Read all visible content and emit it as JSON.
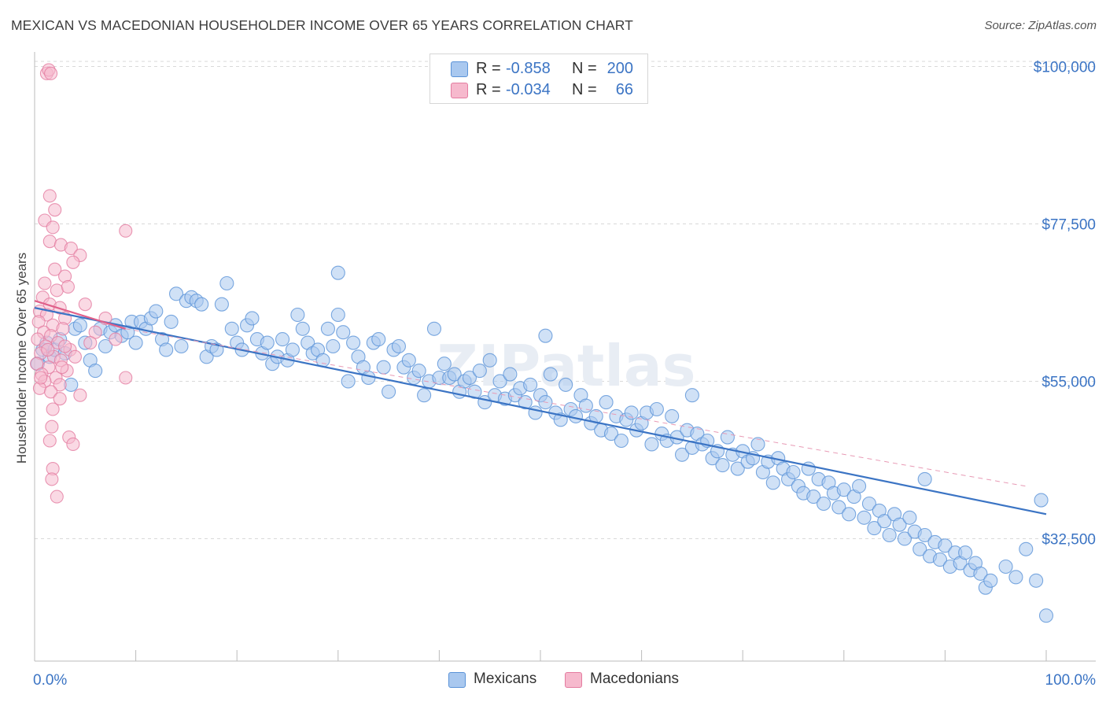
{
  "title": "MEXICAN VS MACEDONIAN HOUSEHOLDER INCOME OVER 65 YEARS CORRELATION CHART",
  "source": "Source: ZipAtlas.com",
  "watermark": "ZIPatlas",
  "legend": {
    "rows": [
      {
        "r_label": "R =",
        "r_value": "-0.858",
        "n_label": "N =",
        "n_value": "200",
        "color": "#a9c8ef"
      },
      {
        "r_label": "R =",
        "r_value": "-0.034",
        "n_label": "N =",
        "n_value": "66",
        "color": "#f6b9cd"
      }
    ]
  },
  "bottom_legend": [
    {
      "label": "Mexicans",
      "color": "#a9c8ef"
    },
    {
      "label": "Macedonians",
      "color": "#f6b9cd"
    }
  ],
  "chart_data": {
    "type": "scatter",
    "ylabel": "Householder Income Over 65 years",
    "xlabel": "",
    "xlim": [
      0,
      100
    ],
    "ylim": [
      15000,
      105000
    ],
    "y_ticks": [
      {
        "value": 32500,
        "label": "$32,500"
      },
      {
        "value": 55000,
        "label": "$55,000"
      },
      {
        "value": 77500,
        "label": "$77,500"
      },
      {
        "value": 100000,
        "label": "$100,000"
      }
    ],
    "x_tick_labels": {
      "left": "0.0%",
      "right": "100.0%"
    },
    "grid": true,
    "series": [
      {
        "name": "Mexicans",
        "color": "#5b93d8",
        "fill": "#a9c8ef",
        "trend": {
          "x": [
            0,
            100
          ],
          "y": [
            65500,
            36000
          ]
        },
        "points": [
          [
            0.3,
            57500
          ],
          [
            0.8,
            59500
          ],
          [
            1.2,
            60500
          ],
          [
            1.5,
            58500
          ],
          [
            2.0,
            59500
          ],
          [
            2.5,
            61000
          ],
          [
            3.0,
            59000
          ],
          [
            3.6,
            54500
          ],
          [
            4.0,
            62500
          ],
          [
            4.5,
            63000
          ],
          [
            5.0,
            60500
          ],
          [
            5.5,
            58000
          ],
          [
            6.0,
            56500
          ],
          [
            6.5,
            62500
          ],
          [
            7.0,
            60000
          ],
          [
            7.5,
            62000
          ],
          [
            8.0,
            63000
          ],
          [
            8.6,
            61500
          ],
          [
            9.2,
            62000
          ],
          [
            9.6,
            63500
          ],
          [
            10.0,
            60500
          ],
          [
            10.5,
            63500
          ],
          [
            11.0,
            62500
          ],
          [
            11.5,
            64000
          ],
          [
            12.0,
            65000
          ],
          [
            12.6,
            61000
          ],
          [
            13.0,
            59500
          ],
          [
            13.5,
            63500
          ],
          [
            14.0,
            67500
          ],
          [
            14.5,
            60000
          ],
          [
            15.0,
            66500
          ],
          [
            15.5,
            67000
          ],
          [
            16.0,
            66500
          ],
          [
            16.5,
            66000
          ],
          [
            17.0,
            58500
          ],
          [
            17.5,
            60000
          ],
          [
            18.0,
            59500
          ],
          [
            18.5,
            66000
          ],
          [
            19.0,
            69000
          ],
          [
            19.5,
            62500
          ],
          [
            20.0,
            60500
          ],
          [
            20.5,
            59500
          ],
          [
            21.0,
            63000
          ],
          [
            21.5,
            64000
          ],
          [
            22.0,
            61000
          ],
          [
            22.5,
            59000
          ],
          [
            23.0,
            60500
          ],
          [
            23.5,
            57500
          ],
          [
            24.0,
            58500
          ],
          [
            24.5,
            61000
          ],
          [
            25.0,
            58000
          ],
          [
            25.5,
            59500
          ],
          [
            26.0,
            64500
          ],
          [
            26.5,
            62500
          ],
          [
            27.0,
            60500
          ],
          [
            27.5,
            59000
          ],
          [
            28.0,
            59500
          ],
          [
            28.5,
            58000
          ],
          [
            29.0,
            62500
          ],
          [
            29.5,
            60000
          ],
          [
            30.0,
            64500
          ],
          [
            30.5,
            62000
          ],
          [
            31.0,
            55000
          ],
          [
            31.5,
            60500
          ],
          [
            32.0,
            58500
          ],
          [
            32.5,
            57000
          ],
          [
            33.0,
            55500
          ],
          [
            33.5,
            60500
          ],
          [
            34.0,
            61000
          ],
          [
            34.5,
            57000
          ],
          [
            35.0,
            53500
          ],
          [
            35.5,
            59500
          ],
          [
            36.0,
            60000
          ],
          [
            36.5,
            57000
          ],
          [
            37.0,
            58000
          ],
          [
            37.5,
            55500
          ],
          [
            38.0,
            56500
          ],
          [
            38.5,
            53000
          ],
          [
            39.0,
            55000
          ],
          [
            39.5,
            62500
          ],
          [
            40.0,
            55500
          ],
          [
            40.5,
            57500
          ],
          [
            41.0,
            55500
          ],
          [
            41.5,
            56000
          ],
          [
            42.0,
            53500
          ],
          [
            42.5,
            55000
          ],
          [
            43.0,
            55500
          ],
          [
            43.5,
            53500
          ],
          [
            44.0,
            56500
          ],
          [
            44.5,
            52000
          ],
          [
            45.0,
            58000
          ],
          [
            45.5,
            53000
          ],
          [
            46.0,
            55000
          ],
          [
            46.5,
            52500
          ],
          [
            47.0,
            56000
          ],
          [
            47.5,
            53000
          ],
          [
            48.0,
            54000
          ],
          [
            48.5,
            52000
          ],
          [
            49.0,
            54500
          ],
          [
            49.5,
            50500
          ],
          [
            50.0,
            53000
          ],
          [
            50.5,
            52000
          ],
          [
            51.0,
            56000
          ],
          [
            51.5,
            50500
          ],
          [
            52.0,
            49500
          ],
          [
            52.5,
            54500
          ],
          [
            53.0,
            51000
          ],
          [
            53.5,
            50000
          ],
          [
            54.0,
            53000
          ],
          [
            54.5,
            51500
          ],
          [
            55.0,
            49000
          ],
          [
            55.5,
            50000
          ],
          [
            56.0,
            48000
          ],
          [
            56.5,
            52000
          ],
          [
            57.0,
            47500
          ],
          [
            57.5,
            50000
          ],
          [
            58.0,
            46500
          ],
          [
            58.5,
            49500
          ],
          [
            59.0,
            50500
          ],
          [
            59.5,
            48000
          ],
          [
            60.0,
            49000
          ],
          [
            60.5,
            50500
          ],
          [
            61.0,
            46000
          ],
          [
            61.5,
            51000
          ],
          [
            62.0,
            47500
          ],
          [
            62.5,
            46500
          ],
          [
            63.0,
            50000
          ],
          [
            63.5,
            47000
          ],
          [
            64.0,
            44500
          ],
          [
            64.5,
            48000
          ],
          [
            65.0,
            45500
          ],
          [
            65.5,
            47500
          ],
          [
            66.0,
            46000
          ],
          [
            66.5,
            46500
          ],
          [
            67.0,
            44000
          ],
          [
            67.5,
            45000
          ],
          [
            68.0,
            43000
          ],
          [
            68.5,
            47000
          ],
          [
            69.0,
            44500
          ],
          [
            69.5,
            42500
          ],
          [
            70.0,
            45000
          ],
          [
            70.5,
            43500
          ],
          [
            71.0,
            44000
          ],
          [
            71.5,
            46000
          ],
          [
            72.0,
            42000
          ],
          [
            72.5,
            43500
          ],
          [
            73.0,
            40500
          ],
          [
            73.5,
            44000
          ],
          [
            74.0,
            42500
          ],
          [
            74.5,
            41000
          ],
          [
            75.0,
            42000
          ],
          [
            75.5,
            40000
          ],
          [
            76.0,
            39000
          ],
          [
            76.5,
            42500
          ],
          [
            77.0,
            38500
          ],
          [
            77.5,
            41000
          ],
          [
            78.0,
            37500
          ],
          [
            78.5,
            40500
          ],
          [
            79.0,
            39000
          ],
          [
            79.5,
            37000
          ],
          [
            80.0,
            39500
          ],
          [
            80.5,
            36000
          ],
          [
            81.0,
            38500
          ],
          [
            81.5,
            40000
          ],
          [
            82.0,
            35500
          ],
          [
            82.5,
            37500
          ],
          [
            83.0,
            34000
          ],
          [
            83.5,
            36500
          ],
          [
            84.0,
            35000
          ],
          [
            84.5,
            33000
          ],
          [
            85.0,
            36000
          ],
          [
            85.5,
            34500
          ],
          [
            86.0,
            32500
          ],
          [
            86.5,
            35500
          ],
          [
            87.0,
            33500
          ],
          [
            87.5,
            31000
          ],
          [
            88.0,
            33000
          ],
          [
            88.5,
            30000
          ],
          [
            89.0,
            32000
          ],
          [
            89.5,
            29500
          ],
          [
            90.0,
            31500
          ],
          [
            90.5,
            28500
          ],
          [
            91.0,
            30500
          ],
          [
            91.5,
            29000
          ],
          [
            92.0,
            30500
          ],
          [
            92.5,
            28000
          ],
          [
            93.0,
            29000
          ],
          [
            93.5,
            27500
          ],
          [
            94.0,
            25500
          ],
          [
            94.5,
            26500
          ],
          [
            96.0,
            28500
          ],
          [
            97.0,
            27000
          ],
          [
            98.0,
            31000
          ],
          [
            99.0,
            26500
          ],
          [
            99.5,
            38000
          ],
          [
            100.0,
            21500
          ],
          [
            30.0,
            70500
          ],
          [
            50.5,
            61500
          ],
          [
            65.0,
            53000
          ],
          [
            88.0,
            41000
          ]
        ]
      },
      {
        "name": "Macedonians",
        "color": "#e47ca0",
        "fill": "#f6b9cd",
        "trend": {
          "x": [
            0,
            9
          ],
          "y": [
            66500,
            62500
          ]
        },
        "points": [
          [
            1.2,
            99000
          ],
          [
            1.4,
            99500
          ],
          [
            1.6,
            99000
          ],
          [
            1.5,
            81500
          ],
          [
            2.0,
            79500
          ],
          [
            1.0,
            78000
          ],
          [
            1.8,
            77000
          ],
          [
            1.5,
            75000
          ],
          [
            2.6,
            74500
          ],
          [
            3.6,
            74000
          ],
          [
            4.5,
            73000
          ],
          [
            3.8,
            72000
          ],
          [
            2.0,
            71000
          ],
          [
            3.0,
            70000
          ],
          [
            1.0,
            69000
          ],
          [
            2.2,
            68000
          ],
          [
            0.8,
            67000
          ],
          [
            1.5,
            66000
          ],
          [
            2.5,
            65500
          ],
          [
            0.5,
            65000
          ],
          [
            1.2,
            64500
          ],
          [
            3.0,
            64000
          ],
          [
            0.4,
            63500
          ],
          [
            1.8,
            63000
          ],
          [
            2.8,
            62500
          ],
          [
            0.9,
            62000
          ],
          [
            1.6,
            61500
          ],
          [
            0.3,
            61000
          ],
          [
            2.3,
            60500
          ],
          [
            1.1,
            60000
          ],
          [
            3.5,
            59500
          ],
          [
            0.6,
            59000
          ],
          [
            1.9,
            58500
          ],
          [
            2.6,
            58000
          ],
          [
            0.2,
            57500
          ],
          [
            1.4,
            57000
          ],
          [
            3.2,
            56500
          ],
          [
            0.7,
            56000
          ],
          [
            2.1,
            55500
          ],
          [
            1.0,
            55000
          ],
          [
            2.5,
            54500
          ],
          [
            0.5,
            54000
          ],
          [
            1.6,
            53500
          ],
          [
            4.5,
            53000
          ],
          [
            9.0,
            55500
          ],
          [
            1.8,
            51000
          ],
          [
            2.5,
            52500
          ],
          [
            1.7,
            48500
          ],
          [
            1.5,
            46500
          ],
          [
            3.4,
            47000
          ],
          [
            3.8,
            46000
          ],
          [
            1.8,
            42500
          ],
          [
            1.7,
            41000
          ],
          [
            2.2,
            38500
          ],
          [
            9.0,
            76500
          ],
          [
            7.0,
            64000
          ],
          [
            5.0,
            66000
          ],
          [
            3.0,
            60000
          ],
          [
            6.0,
            62000
          ],
          [
            8.0,
            61000
          ],
          [
            4.0,
            58500
          ],
          [
            5.5,
            60500
          ],
          [
            2.7,
            57000
          ],
          [
            3.3,
            68500
          ],
          [
            0.6,
            55500
          ],
          [
            1.3,
            59500
          ]
        ]
      }
    ]
  }
}
